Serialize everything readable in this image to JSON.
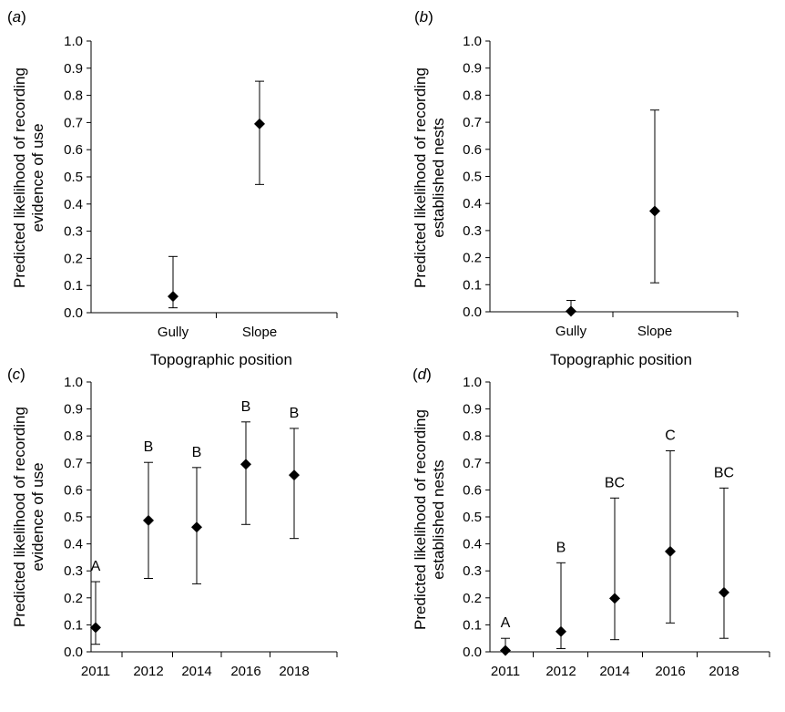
{
  "chart_data": [
    {
      "panel_label": "a",
      "type": "scatter",
      "ylabel": [
        "Predicted likelihood of recording",
        "evidence of use"
      ],
      "xlabel": "Topographic position",
      "categories": [
        "Gully",
        "Slope"
      ],
      "ylim": [
        0,
        1.0
      ],
      "yticks": [
        "0.0",
        "0.1",
        "0.2",
        "0.3",
        "0.4",
        "0.5",
        "0.6",
        "0.7",
        "0.8",
        "0.9",
        "1.0"
      ],
      "values": [
        0.06,
        0.695
      ],
      "lower": [
        0.018,
        0.472
      ],
      "upper": [
        0.207,
        0.852
      ],
      "annotations": []
    },
    {
      "panel_label": "b",
      "type": "scatter",
      "ylabel": [
        "Predicted likelihood of recording",
        "established nests"
      ],
      "xlabel": "Topographic position",
      "categories": [
        "Gully",
        "Slope"
      ],
      "ylim": [
        0,
        1.0
      ],
      "yticks": [
        "0.0",
        "0.1",
        "0.2",
        "0.3",
        "0.4",
        "0.5",
        "0.6",
        "0.7",
        "0.8",
        "0.9",
        "1.0"
      ],
      "values": [
        0.002,
        0.372
      ],
      "lower": [
        0.0,
        0.107
      ],
      "upper": [
        0.042,
        0.745
      ],
      "annotations": []
    },
    {
      "panel_label": "c",
      "type": "scatter",
      "ylabel": [
        "Predicted likelihood of recording",
        "evidence of use"
      ],
      "xlabel": "",
      "categories": [
        "2011",
        "2012",
        "2014",
        "2016",
        "2018"
      ],
      "ylim": [
        0,
        1.0
      ],
      "yticks": [
        "0.0",
        "0.1",
        "0.2",
        "0.3",
        "0.4",
        "0.5",
        "0.6",
        "0.7",
        "0.8",
        "0.9",
        "1.0"
      ],
      "values": [
        0.09,
        0.487,
        0.462,
        0.695,
        0.655
      ],
      "lower": [
        0.028,
        0.272,
        0.252,
        0.472,
        0.42
      ],
      "upper": [
        0.26,
        0.702,
        0.683,
        0.852,
        0.828
      ],
      "annotations": [
        "A",
        "B",
        "B",
        "B",
        "B"
      ]
    },
    {
      "panel_label": "d",
      "type": "scatter",
      "ylabel": [
        "Predicted likelihood of recording",
        "established nests"
      ],
      "xlabel": "",
      "categories": [
        "2011",
        "2012",
        "2014",
        "2016",
        "2018"
      ],
      "ylim": [
        0,
        1.0
      ],
      "yticks": [
        "0.0",
        "0.1",
        "0.2",
        "0.3",
        "0.4",
        "0.5",
        "0.6",
        "0.7",
        "0.8",
        "0.9",
        "1.0"
      ],
      "values": [
        0.005,
        0.075,
        0.198,
        0.372,
        0.22
      ],
      "lower": [
        0.0,
        0.012,
        0.045,
        0.107,
        0.05
      ],
      "upper": [
        0.05,
        0.33,
        0.57,
        0.745,
        0.607
      ],
      "annotations": [
        "A",
        "B",
        "BC",
        "C",
        "BC"
      ]
    }
  ]
}
